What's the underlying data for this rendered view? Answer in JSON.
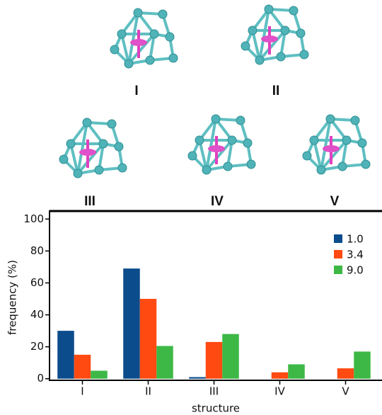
{
  "chart_data": {
    "type": "bar",
    "x_label": "structure",
    "y_label": "frequency (%)",
    "categories": [
      "I",
      "II",
      "III",
      "IV",
      "V"
    ],
    "series": [
      {
        "name": "1.0",
        "color": "#0b4c8c",
        "values": [
          30,
          69,
          1,
          0,
          0
        ]
      },
      {
        "name": "3.4",
        "color": "#ff4a12",
        "values": [
          15,
          50,
          23,
          4,
          6.5
        ]
      },
      {
        "name": "9.0",
        "color": "#3db846",
        "values": [
          5,
          20.5,
          28,
          9,
          17
        ]
      }
    ],
    "ylim": [
      -1,
      105
    ],
    "yticks": [
      0,
      20,
      40,
      60,
      80,
      100
    ],
    "legend": "upper right",
    "grid": false
  }
}
